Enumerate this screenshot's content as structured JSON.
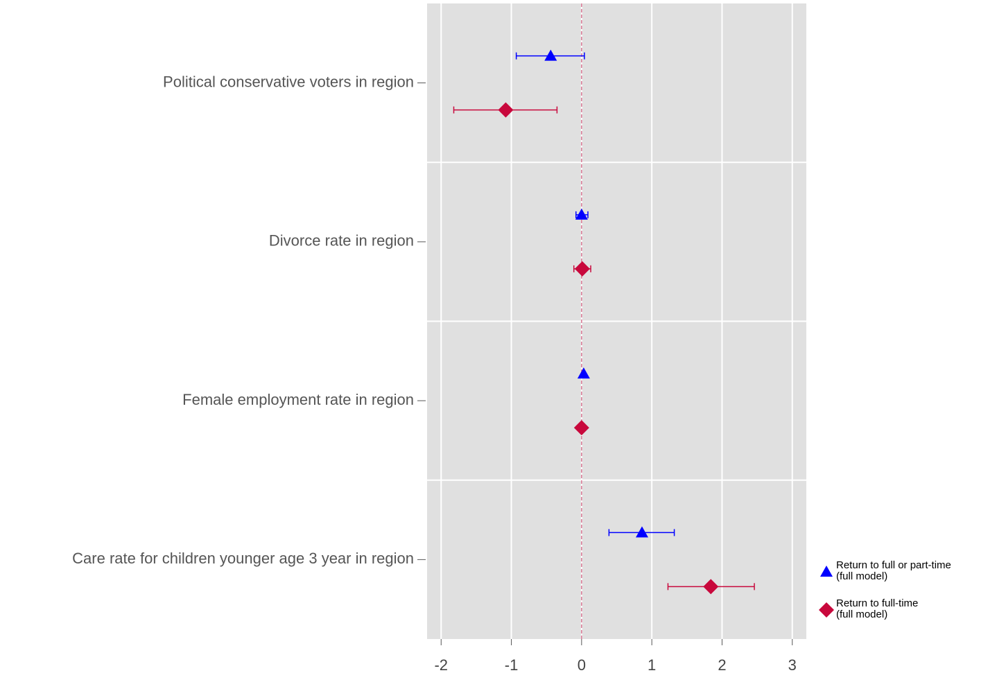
{
  "chart_data": {
    "type": "coefplot",
    "categories": [
      "Political conservative voters in region",
      "Divorce rate in region",
      "Female employment rate in region",
      "Care rate for children younger age 3 year in region"
    ],
    "series": [
      {
        "name": "Return to full or part-time\n(full model)",
        "color": "#0000ff",
        "marker": "triangle",
        "values": [
          -0.44,
          0.0,
          0.03,
          0.86
        ],
        "lower": [
          -0.93,
          -0.08,
          0.02,
          0.39
        ],
        "upper": [
          0.04,
          0.09,
          0.04,
          1.32
        ]
      },
      {
        "name": "Return to full-time\n(full model)",
        "color": "#c8083c",
        "marker": "diamond",
        "values": [
          -1.08,
          0.01,
          0.0,
          1.84
        ],
        "lower": [
          -1.82,
          -0.11,
          -0.01,
          1.23
        ],
        "upper": [
          -0.35,
          0.13,
          0.01,
          2.46
        ]
      }
    ],
    "xlim": [
      -2.2,
      3.2
    ],
    "xticks": [
      -2,
      -1,
      0,
      1,
      2,
      3
    ],
    "xline": 0,
    "grid": true
  }
}
